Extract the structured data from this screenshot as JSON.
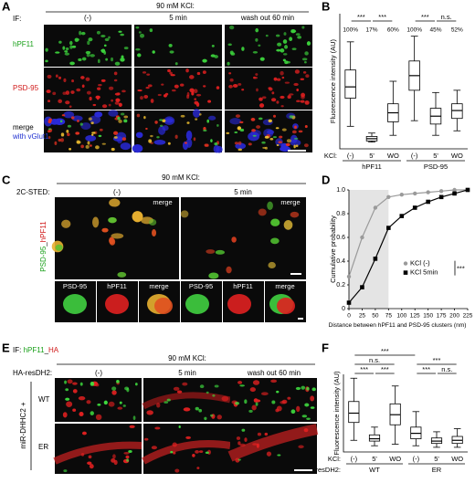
{
  "panel_labels": [
    "A",
    "B",
    "C",
    "D",
    "E",
    "F"
  ],
  "a": {
    "prefix": "IF:",
    "treatment": "90 mM KCl:",
    "columns": [
      "(-)",
      "5 min",
      "wash out 60 min"
    ],
    "rows": [
      "hPF11",
      "PSD-95"
    ],
    "merge": [
      "merge",
      "with vGlut1"
    ]
  },
  "c": {
    "treatment": "90 mM KCl:",
    "columns": [
      "(-)",
      "5 min"
    ],
    "method": "2C-STED:",
    "side_label": [
      "PSD-95",
      "_",
      "hPF11"
    ],
    "merge": "merge",
    "insets": [
      "PSD-95",
      "hPF11"
    ]
  },
  "e": {
    "prefix": "IF:",
    "stain": [
      "hPF11",
      "_",
      "HA"
    ],
    "treatment": "90 mM KCl:",
    "construct": "HA-resDH2:",
    "columns": [
      "(-)",
      "5 min",
      "wash out 60 min"
    ],
    "rows": [
      "WT",
      "ER"
    ],
    "side_label": "miR-DHHC2 +"
  },
  "chart_data": [
    {
      "type": "box",
      "ylabel": "Fluorescence intensity (AU)",
      "category_axis_label": "KCl:",
      "categories": [
        "(-)",
        "5'",
        "WO",
        "(-)",
        "5'",
        "WO"
      ],
      "groups": [
        "hPF11",
        "PSD-95"
      ],
      "ylim": [
        0,
        120
      ],
      "boxes": [
        {
          "whislo": 20,
          "q1": 45,
          "med": 55,
          "q3": 70,
          "whishi": 95
        },
        {
          "whislo": 6,
          "q1": 7,
          "med": 9,
          "q3": 11,
          "whishi": 14
        },
        {
          "whislo": 12,
          "q1": 24,
          "med": 32,
          "q3": 40,
          "whishi": 60
        },
        {
          "whislo": 25,
          "q1": 52,
          "med": 65,
          "q3": 78,
          "whishi": 100
        },
        {
          "whislo": 12,
          "q1": 22,
          "med": 29,
          "q3": 36,
          "whishi": 50
        },
        {
          "whislo": 16,
          "q1": 27,
          "med": 34,
          "q3": 40,
          "whishi": 52
        }
      ],
      "top_labels": [
        "100%",
        "17%",
        "60%",
        "100%",
        "45%",
        "52%"
      ],
      "significance": [
        "***",
        "***",
        "***",
        "n.s."
      ]
    },
    {
      "type": "line",
      "xlabel": "Distance between hPF11 and PSD-95 clusters (nm)",
      "ylabel": "Cumulative probability",
      "xlim": [
        0,
        225
      ],
      "xticks": [
        0,
        25,
        50,
        75,
        100,
        125,
        150,
        175,
        200,
        225
      ],
      "ylim": [
        0,
        1
      ],
      "yticks": [
        0,
        0.2,
        0.4,
        0.6,
        0.8,
        {
          "value": 1,
          "label": "1.0"
        }
      ],
      "highlight": [
        0,
        75
      ],
      "legend": "center-right",
      "annotation": "***",
      "x": [
        0,
        25,
        50,
        75,
        100,
        125,
        150,
        175,
        200,
        225
      ],
      "series": [
        {
          "name": "KCl (-)",
          "color": "#9a9a9a",
          "marker": "circle",
          "values": [
            0.27,
            0.6,
            0.85,
            0.94,
            0.96,
            0.97,
            0.98,
            0.99,
            1.0,
            1.0
          ]
        },
        {
          "name": "KCl 5min",
          "color": "#000000",
          "marker": "square",
          "values": [
            0.05,
            0.18,
            0.42,
            0.68,
            0.78,
            0.85,
            0.9,
            0.94,
            0.97,
            1.0
          ]
        }
      ]
    },
    {
      "type": "box",
      "ylabel": "Fluorescence intensity (AU)",
      "category_axis_label": "KCl:",
      "group_axis_label": "resDH2:",
      "categories": [
        "(-)",
        "5'",
        "WO",
        "(-)",
        "5'",
        "WO"
      ],
      "groups": [
        "WT",
        "ER"
      ],
      "ylim": [
        0,
        100
      ],
      "boxes": [
        {
          "whislo": 15,
          "q1": 38,
          "med": 50,
          "q3": 65,
          "whishi": 95
        },
        {
          "whislo": 8,
          "q1": 14,
          "med": 17,
          "q3": 22,
          "whishi": 32
        },
        {
          "whislo": 10,
          "q1": 35,
          "med": 48,
          "q3": 62,
          "whishi": 85
        },
        {
          "whislo": 8,
          "q1": 17,
          "med": 24,
          "q3": 32,
          "whishi": 52
        },
        {
          "whislo": 6,
          "q1": 11,
          "med": 14,
          "q3": 18,
          "whishi": 26
        },
        {
          "whislo": 6,
          "q1": 11,
          "med": 15,
          "q3": 20,
          "whishi": 30
        }
      ],
      "significance": [
        "***",
        "n.s.",
        "***",
        "***",
        "***",
        "***",
        "n.s."
      ]
    }
  ]
}
